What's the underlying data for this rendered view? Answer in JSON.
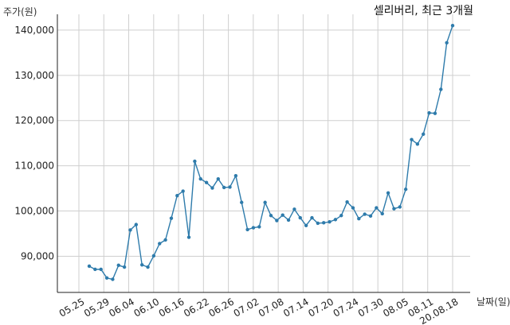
{
  "chart_data": {
    "type": "line",
    "title": "셀리버리, 최근 3개월",
    "xlabel": "날짜(일)",
    "ylabel": "주가(원)",
    "x_tick_labels": [
      "05.25",
      "05.29",
      "06.04",
      "06.10",
      "06.16",
      "06.22",
      "06.26",
      "07.02",
      "07.08",
      "07.14",
      "07.20",
      "07.24",
      "07.30",
      "08.05",
      "08.11",
      "20.08.18"
    ],
    "y_ticks": [
      90000,
      100000,
      110000,
      120000,
      130000,
      140000
    ],
    "y_tick_labels": [
      "90,000",
      "100,000",
      "110,000",
      "120,000",
      "130,000",
      "140,000"
    ],
    "ylim": [
      82000,
      143500
    ],
    "grid": true,
    "color": "#2e7bab",
    "series": [
      {
        "values": [
          87800,
          87100,
          87100,
          85200,
          84900,
          88000,
          87600,
          95800,
          97000,
          88100,
          87600,
          90100,
          92800,
          93600,
          98400,
          103400,
          104400,
          94200,
          111000,
          107100,
          106300,
          105100,
          107100,
          105200,
          105300,
          107800,
          101900,
          95900,
          96300,
          96500,
          101900,
          99000,
          97900,
          99100,
          98000,
          100400,
          98500,
          96800,
          98500,
          97300,
          97400,
          97600,
          98100,
          99000,
          102000,
          100700,
          98300,
          99300,
          98900,
          100700,
          99400,
          104000,
          100500,
          100900,
          104800,
          115800,
          114800,
          117000,
          121700,
          121600,
          126900,
          137200,
          141000
        ]
      }
    ]
  }
}
